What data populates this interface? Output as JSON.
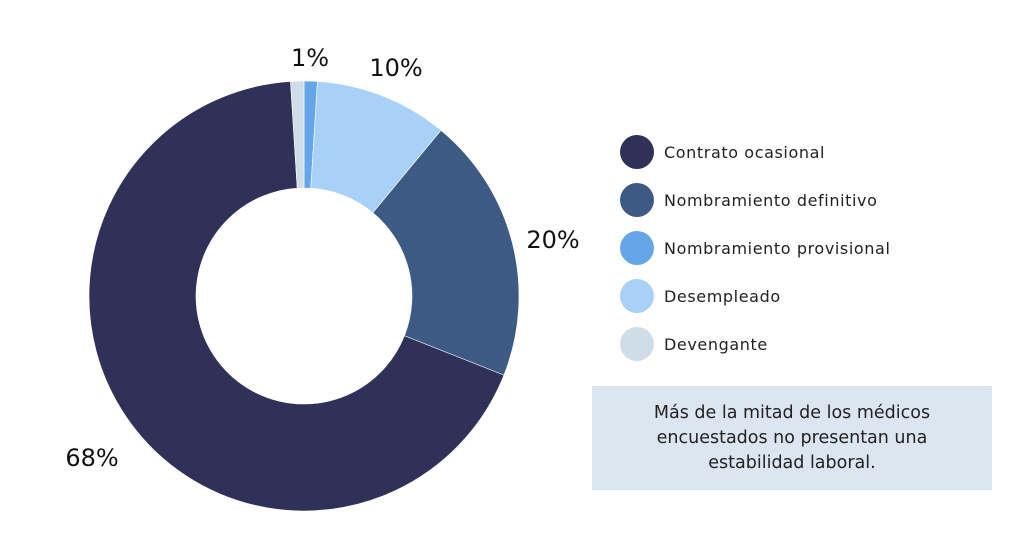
{
  "chart_data": {
    "type": "pie",
    "donut": true,
    "categories": [
      "Nombramiento provisional",
      "Desempleado",
      "Nombramiento definitivo",
      "Contrato ocasional",
      "Devengante"
    ],
    "values": [
      1,
      10,
      20,
      68,
      1
    ],
    "colors": [
      "#65a6e8",
      "#a9d1f7",
      "#3d5a85",
      "#2f3158",
      "#cfdde9"
    ],
    "data_labels": [
      "1%",
      "10%",
      "20%",
      "68%",
      ""
    ],
    "legend": {
      "placement": "right",
      "entries": [
        {
          "label": "Contrato ocasional",
          "color": "#2f3158"
        },
        {
          "label": "Nombramiento definitivo",
          "color": "#3d5a85"
        },
        {
          "label": "Nombramiento provisional",
          "color": "#65a6e8"
        },
        {
          "label": "Desempleado",
          "color": "#a9d1f7"
        },
        {
          "label": "Devengante",
          "color": "#cfdde9"
        }
      ]
    }
  },
  "note": "Más de  la mitad  de los médicos encuestados no presentan una estabilidad laboral."
}
